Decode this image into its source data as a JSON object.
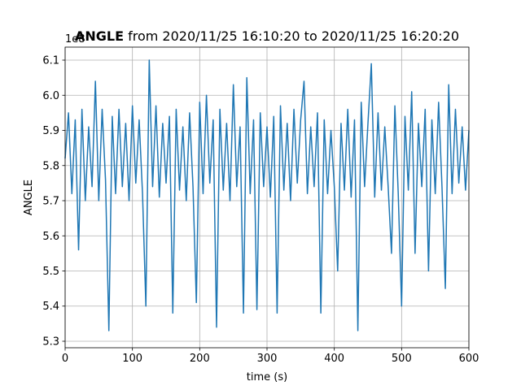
{
  "chart_data": {
    "type": "line",
    "title_bold": "ANGLE",
    "title": "from 2020/11/25 16:10:20 to 2020/11/25 16:20:20",
    "xlabel": "time (s)",
    "ylabel": "ANGLE",
    "offset_label": "1e8",
    "x": [
      0,
      5,
      10,
      15,
      20,
      25,
      30,
      35,
      40,
      45,
      50,
      55,
      60,
      65,
      70,
      75,
      80,
      85,
      90,
      95,
      100,
      105,
      110,
      115,
      120,
      125,
      130,
      135,
      140,
      145,
      150,
      155,
      160,
      165,
      170,
      175,
      180,
      185,
      190,
      195,
      200,
      205,
      210,
      215,
      220,
      225,
      230,
      235,
      240,
      245,
      250,
      255,
      260,
      265,
      270,
      275,
      280,
      285,
      290,
      295,
      300,
      305,
      310,
      315,
      320,
      325,
      330,
      335,
      340,
      345,
      350,
      355,
      360,
      365,
      370,
      375,
      380,
      385,
      390,
      395,
      400,
      405,
      410,
      415,
      420,
      425,
      430,
      435,
      440,
      445,
      450,
      455,
      460,
      465,
      470,
      475,
      480,
      485,
      490,
      495,
      500,
      505,
      510,
      515,
      520,
      525,
      530,
      535,
      540,
      545,
      550,
      555,
      560,
      565,
      570,
      575,
      580,
      585,
      590,
      595,
      600
    ],
    "series": [
      {
        "name": "ANGLE",
        "color": "#1f77b4",
        "values": [
          5.82,
          5.95,
          5.72,
          5.93,
          5.56,
          5.96,
          5.7,
          5.91,
          5.74,
          6.04,
          5.7,
          5.96,
          5.76,
          5.33,
          5.94,
          5.72,
          5.96,
          5.74,
          5.92,
          5.7,
          5.97,
          5.75,
          5.93,
          5.72,
          5.4,
          6.1,
          5.74,
          5.97,
          5.71,
          5.92,
          5.75,
          5.94,
          5.38,
          5.96,
          5.73,
          5.91,
          5.7,
          5.95,
          5.74,
          5.41,
          5.98,
          5.72,
          6.0,
          5.75,
          5.93,
          5.34,
          5.96,
          5.73,
          5.92,
          5.7,
          6.03,
          5.74,
          5.91,
          5.38,
          6.05,
          5.72,
          5.93,
          5.39,
          5.95,
          5.74,
          5.91,
          5.71,
          5.94,
          5.38,
          5.97,
          5.73,
          5.92,
          5.7,
          5.96,
          5.75,
          5.93,
          6.04,
          5.72,
          5.91,
          5.74,
          5.95,
          5.38,
          5.93,
          5.72,
          5.9,
          5.74,
          5.5,
          5.92,
          5.73,
          5.96,
          5.71,
          5.93,
          5.33,
          5.98,
          5.74,
          5.92,
          6.09,
          5.71,
          5.95,
          5.73,
          5.91,
          5.74,
          5.55,
          5.97,
          5.72,
          5.4,
          5.94,
          5.73,
          6.01,
          5.55,
          5.92,
          5.74,
          5.96,
          5.5,
          5.93,
          5.72,
          5.98,
          5.74,
          5.45,
          6.03,
          5.72,
          5.96,
          5.75,
          5.91,
          5.73,
          5.9
        ]
      }
    ],
    "xlim": [
      0,
      600
    ],
    "xticks": [
      0,
      100,
      200,
      300,
      400,
      500,
      600
    ],
    "ylim": [
      5.2815,
      6.137
    ],
    "yticks": [
      5.3,
      5.4,
      5.5,
      5.6,
      5.7,
      5.8,
      5.9,
      {
        "value": 6.0,
        "label": "6.0"
      },
      6.1
    ],
    "grid": true
  }
}
